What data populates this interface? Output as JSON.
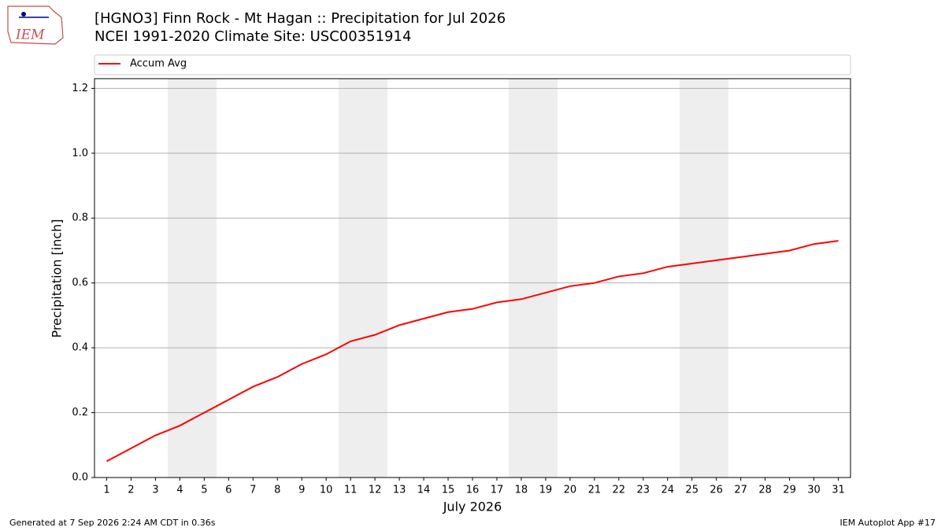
{
  "logo_text": "IEM",
  "footer": {
    "left": "Generated at 7 Sep 2026 2:24 AM CDT in 0.36s",
    "right": "IEM Autoplot App #17"
  },
  "chart_data": {
    "type": "line",
    "title": "[HGNO3] Finn Rock - Mt Hagan :: Precipitation for Jul 2026",
    "subtitle": "NCEI 1991-2020 Climate Site: USC00351914",
    "xlabel": "July 2026",
    "ylabel": "Precipitation [inch]",
    "x": [
      1,
      2,
      3,
      4,
      5,
      6,
      7,
      8,
      9,
      10,
      11,
      12,
      13,
      14,
      15,
      16,
      17,
      18,
      19,
      20,
      21,
      22,
      23,
      24,
      25,
      26,
      27,
      28,
      29,
      30,
      31
    ],
    "series": [
      {
        "name": "Accum Avg",
        "color": "#ff0000",
        "values": [
          0.05,
          0.09,
          0.13,
          0.16,
          0.2,
          0.24,
          0.28,
          0.31,
          0.35,
          0.38,
          0.42,
          0.44,
          0.47,
          0.49,
          0.51,
          0.52,
          0.54,
          0.55,
          0.57,
          0.59,
          0.6,
          0.62,
          0.63,
          0.65,
          0.66,
          0.67,
          0.68,
          0.69,
          0.7,
          0.72,
          0.73
        ]
      }
    ],
    "xlim": [
      0.5,
      31.5
    ],
    "xticks": [
      1,
      2,
      3,
      4,
      5,
      6,
      7,
      8,
      9,
      10,
      11,
      12,
      13,
      14,
      15,
      16,
      17,
      18,
      19,
      20,
      21,
      22,
      23,
      24,
      25,
      26,
      27,
      28,
      29,
      30,
      31
    ],
    "ylim": [
      0,
      1.23
    ],
    "yticks": [
      {
        "value": 0,
        "label": "0.0"
      },
      0.2,
      0.4,
      0.6,
      0.8,
      {
        "value": 1,
        "label": "1.0"
      },
      1.2
    ],
    "grid": true,
    "legend": "top"
  }
}
